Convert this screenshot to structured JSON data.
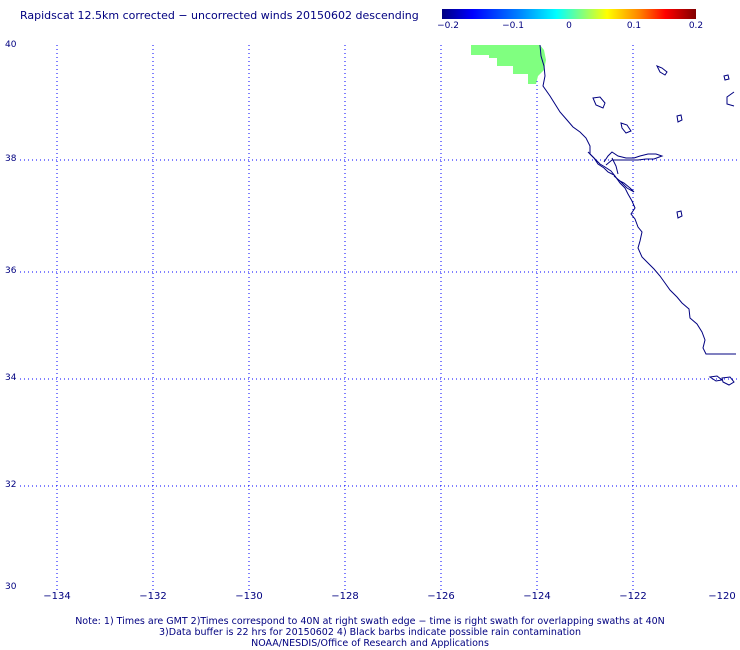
{
  "title": "Rapidscat 12.5km corrected − uncorrected winds 20150602 descending",
  "colorbar": {
    "labels": [
      "−0.2",
      "−0.1",
      "0",
      "0.1",
      "0.2"
    ],
    "colors": [
      "#000080",
      "#0000ff",
      "#00ffff",
      "#80ff80",
      "#ffff00",
      "#ff0000",
      "#800000"
    ]
  },
  "map": {
    "lat_labels": [
      "40",
      "38",
      "36",
      "34",
      "32",
      "30"
    ],
    "lon_labels": [
      "−134",
      "−132",
      "−130",
      "−128",
      "−126",
      "−124",
      "−122",
      "−120"
    ],
    "lat_range": [
      30,
      40
    ],
    "lon_range": [
      -135,
      -120
    ],
    "gridline_color": "#0000ff",
    "coast_color": "#000080",
    "swath_color": "#80ff80"
  },
  "notes": {
    "line1": "Note: 1) Times are GMT 2)Times correspond to 40N at right swath edge − time is right swath for overlapping swaths at 40N",
    "line2": "3)Data buffer is 22 hrs for 20150602 4) Black barbs indicate possible rain contamination",
    "line3": "NOAA/NESDIS/Office of Research and Applications"
  }
}
